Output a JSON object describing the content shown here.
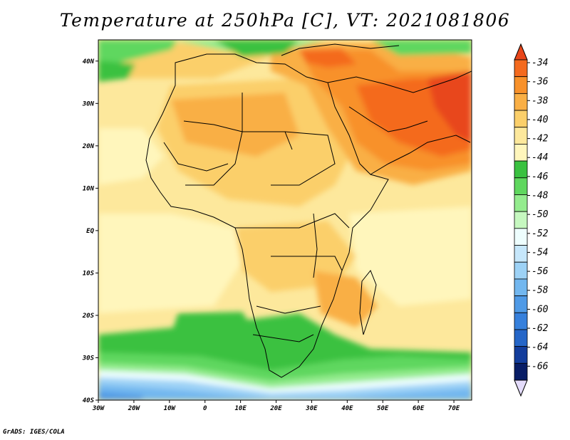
{
  "title": "Temperature at 250hPa [C], VT: 2021081806",
  "credit": "GrADS: IGES/COLA",
  "map": {
    "projection": "lat-lon",
    "lon_range": [
      -30,
      75
    ],
    "lat_range": [
      -40,
      45
    ],
    "lat_ticks": [
      {
        "value": 40,
        "label": "40N"
      },
      {
        "value": 30,
        "label": "30N"
      },
      {
        "value": 20,
        "label": "20N"
      },
      {
        "value": 10,
        "label": "10N"
      },
      {
        "value": 0,
        "label": "EQ"
      },
      {
        "value": -10,
        "label": "10S"
      },
      {
        "value": -20,
        "label": "20S"
      },
      {
        "value": -30,
        "label": "30S"
      },
      {
        "value": -40,
        "label": "40S"
      }
    ],
    "lon_ticks": [
      {
        "value": -30,
        "label": "30W"
      },
      {
        "value": -20,
        "label": "20W"
      },
      {
        "value": -10,
        "label": "10W"
      },
      {
        "value": 0,
        "label": "0"
      },
      {
        "value": 10,
        "label": "10E"
      },
      {
        "value": 20,
        "label": "20E"
      },
      {
        "value": 30,
        "label": "30E"
      },
      {
        "value": 40,
        "label": "40E"
      },
      {
        "value": 50,
        "label": "50E"
      },
      {
        "value": 60,
        "label": "60E"
      },
      {
        "value": 70,
        "label": "70E"
      }
    ]
  },
  "colorbar": {
    "labels": [
      "-34",
      "-36",
      "-38",
      "-40",
      "-42",
      "-44",
      "-46",
      "-48",
      "-50",
      "-52",
      "-54",
      "-56",
      "-58",
      "-60",
      "-62",
      "-64",
      "-66"
    ],
    "colors": [
      "#e8461a",
      "#f46a1e",
      "#f8912a",
      "#f9af45",
      "#fbcf6a",
      "#fde89c",
      "#fff6bc",
      "#3ac140",
      "#5fd75e",
      "#94ec8e",
      "#c6f8c0",
      "#eefefe",
      "#c6e7fb",
      "#9dd2f6",
      "#72b7ef",
      "#4f9ae6",
      "#3680dc",
      "#2566c8",
      "#133d9c",
      "#081d66",
      "#e4dcfb"
    ]
  }
}
